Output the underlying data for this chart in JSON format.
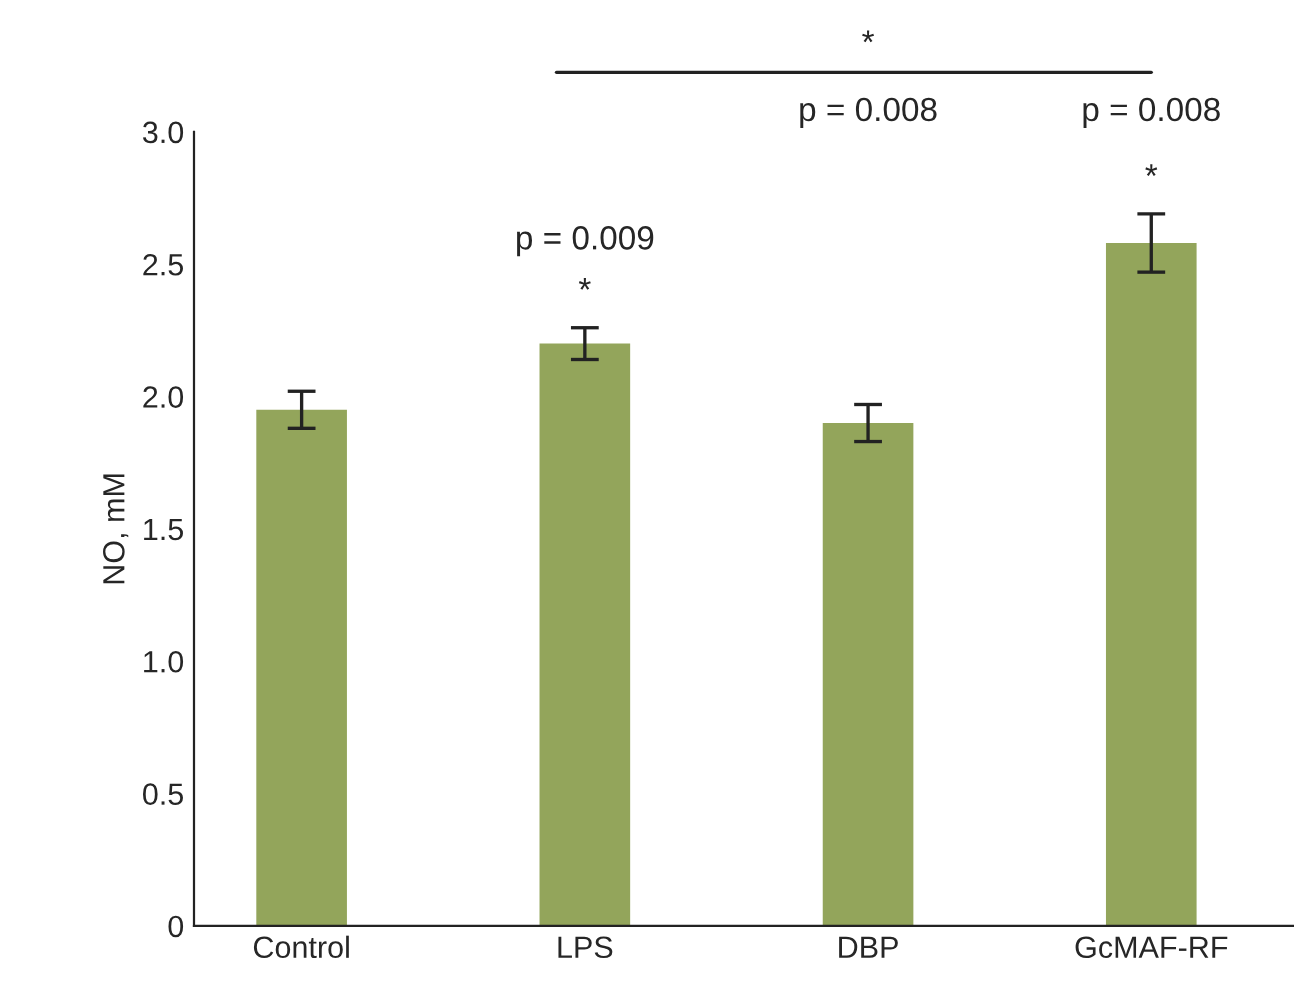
{
  "chart_data": {
    "type": "bar",
    "ylabel": "NO, mM",
    "categories": [
      "Control",
      "LPS",
      "DBP",
      "GcMAF-RF"
    ],
    "values": [
      1.95,
      2.2,
      1.9,
      2.58
    ],
    "errors": [
      0.07,
      0.06,
      0.07,
      0.11
    ],
    "color": "#93a55b",
    "ylim": [
      0,
      3.0
    ],
    "yticks": [
      0,
      0.5,
      {
        "value": 1,
        "label": "1.0"
      },
      1.5,
      {
        "value": 2,
        "label": "2.0"
      },
      2.5,
      {
        "value": 3,
        "label": "3.0"
      }
    ],
    "grid": false,
    "annotations": [
      "*",
      "p = 0.009",
      "p = 0.008",
      "*",
      "p = 0.008",
      "*"
    ]
  }
}
